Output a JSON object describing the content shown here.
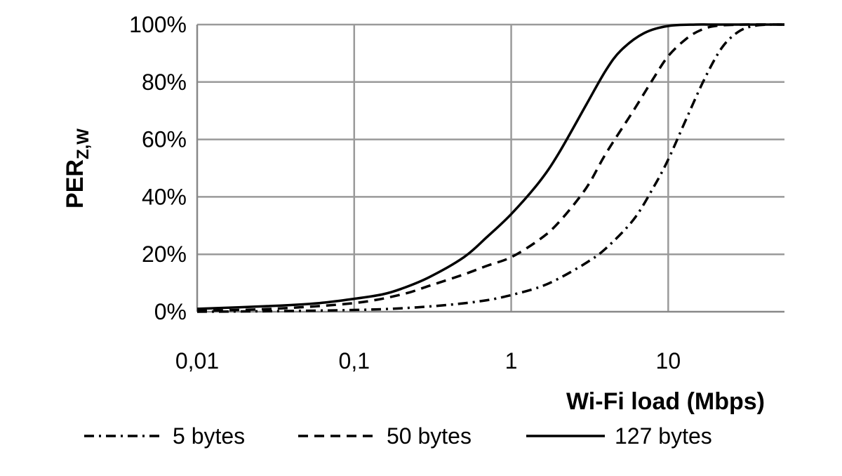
{
  "chart_data": {
    "type": "line",
    "title": "",
    "xlabel": "Wi-Fi load (Mbps)",
    "ylabel_main": "PER",
    "ylabel_sub": "Z,W",
    "xscale": "log",
    "xlim": [
      0.01,
      55
    ],
    "ylim": [
      0,
      100
    ],
    "x_ticks": [
      {
        "value": 0.01,
        "label": "0,01"
      },
      {
        "value": 0.1,
        "label": "0,1"
      },
      {
        "value": 1,
        "label": "1"
      },
      {
        "value": 10,
        "label": "10"
      }
    ],
    "y_ticks": [
      {
        "value": 0,
        "label": "0%"
      },
      {
        "value": 20,
        "label": "20%"
      },
      {
        "value": 40,
        "label": "40%"
      },
      {
        "value": 60,
        "label": "60%"
      },
      {
        "value": 80,
        "label": "80%"
      },
      {
        "value": 100,
        "label": "100%"
      }
    ],
    "grid": true,
    "legend_position": "bottom",
    "series": [
      {
        "name": "5 bytes",
        "dash": "dashdot",
        "x": [
          0.01,
          0.03,
          0.1,
          0.2,
          0.4,
          0.7,
          1,
          1.5,
          2,
          3,
          4,
          6,
          8,
          10,
          13,
          17,
          22,
          28,
          35,
          45,
          55
        ],
        "y": [
          0,
          0.2,
          0.6,
          1.2,
          2.4,
          4,
          5.8,
          8.5,
          11.5,
          17,
          22,
          32,
          43,
          53,
          67,
          81,
          92,
          97.5,
          99.5,
          100,
          100
        ]
      },
      {
        "name": "50 bytes",
        "dash": "dashed",
        "x": [
          0.01,
          0.03,
          0.1,
          0.2,
          0.3,
          0.5,
          0.7,
          1,
          1.5,
          2,
          3,
          4,
          6,
          8,
          10,
          13,
          16,
          20,
          30,
          55
        ],
        "y": [
          0.3,
          1,
          3,
          6,
          9,
          13,
          16,
          19,
          25,
          31,
          43,
          55,
          70,
          81,
          89,
          95,
          98,
          99.5,
          100,
          100
        ]
      },
      {
        "name": "127 bytes",
        "dash": "solid",
        "x": [
          0.01,
          0.03,
          0.06,
          0.1,
          0.15,
          0.2,
          0.3,
          0.5,
          0.7,
          1,
          1.5,
          2,
          3,
          4,
          5,
          7,
          10,
          15,
          20,
          55
        ],
        "y": [
          1,
          2,
          3,
          4.5,
          6,
          8,
          12,
          19,
          26,
          34,
          45,
          55,
          72,
          84,
          91,
          97,
          99.5,
          100,
          100,
          100
        ]
      }
    ]
  }
}
